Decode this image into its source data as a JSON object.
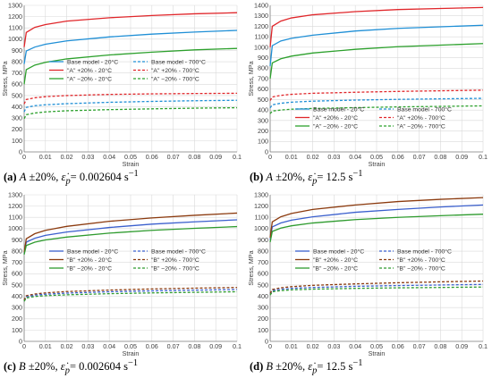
{
  "chart_data": [
    {
      "type": "line",
      "caption": {
        "tag": "(a)",
        "param": "A",
        "pct": "±20%,",
        "rate_label": "ε̇",
        "rate_sub": "p",
        "rate_value": "= 0.002604 s",
        "rate_exp": "−1"
      },
      "xlabel": "Strain",
      "ylabel": "Stress, MPa",
      "xlim": [
        0,
        0.1
      ],
      "ylim": [
        0,
        1300
      ],
      "xticks": [
        "0",
        "0.01",
        "0.02",
        "0.03",
        "0.04",
        "0.05",
        "0.06",
        "0.07",
        "0.08",
        "0.09",
        "0.1"
      ],
      "yticks": [
        "0",
        "100",
        "200",
        "300",
        "400",
        "500",
        "600",
        "700",
        "800",
        "900",
        "1000",
        "1100",
        "1200",
        "1300"
      ],
      "grid": true,
      "legend_position": "center",
      "series": [
        {
          "name": "Base model - 20°C",
          "color": "#1f8fd6",
          "dash": "solid",
          "x": [
            0,
            0.001,
            0.005,
            0.01,
            0.02,
            0.04,
            0.06,
            0.08,
            0.1
          ],
          "y": [
            780,
            895,
            930,
            955,
            985,
            1020,
            1045,
            1063,
            1078
          ]
        },
        {
          "name": "Base model - 700°C",
          "color": "#1f8fd6",
          "dash": "dash",
          "x": [
            0,
            0.001,
            0.005,
            0.01,
            0.02,
            0.04,
            0.06,
            0.08,
            0.1
          ],
          "y": [
            355,
            395,
            410,
            418,
            428,
            440,
            448,
            454,
            458
          ]
        },
        {
          "name": "\"A\" +20% - 20°C",
          "color": "#e0262a",
          "dash": "solid",
          "x": [
            0,
            0.001,
            0.005,
            0.01,
            0.02,
            0.04,
            0.06,
            0.08,
            0.1
          ],
          "y": [
            930,
            1060,
            1105,
            1130,
            1160,
            1190,
            1210,
            1225,
            1235
          ]
        },
        {
          "name": "\"A\" +20% - 700°C",
          "color": "#e0262a",
          "dash": "dash",
          "x": [
            0,
            0.001,
            0.005,
            0.01,
            0.02,
            0.04,
            0.06,
            0.08,
            0.1
          ],
          "y": [
            425,
            465,
            480,
            490,
            500,
            510,
            515,
            518,
            520
          ]
        },
        {
          "name": "\"A\" −20% - 20°C",
          "color": "#2ca02c",
          "dash": "solid",
          "x": [
            0,
            0.001,
            0.005,
            0.01,
            0.02,
            0.04,
            0.06,
            0.08,
            0.1
          ],
          "y": [
            600,
            730,
            770,
            795,
            825,
            860,
            885,
            905,
            918
          ]
        },
        {
          "name": "\"A\" −20% - 700°C",
          "color": "#2ca02c",
          "dash": "dash",
          "x": [
            0,
            0.001,
            0.005,
            0.01,
            0.02,
            0.04,
            0.06,
            0.08,
            0.1
          ],
          "y": [
            295,
            330,
            345,
            355,
            365,
            375,
            382,
            388,
            392
          ]
        }
      ]
    },
    {
      "type": "line",
      "caption": {
        "tag": "(b)",
        "param": "A",
        "pct": "±20%,",
        "rate_label": "ε̇",
        "rate_sub": "p",
        "rate_value": "= 12.5 s",
        "rate_exp": "−1"
      },
      "xlabel": "Strain",
      "ylabel": "Stress, MPa",
      "xlim": [
        0,
        0.1
      ],
      "ylim": [
        0,
        1400
      ],
      "xticks": [
        "0",
        "0.01",
        "0.02",
        "0.03",
        "0.04",
        "0.05",
        "0.06",
        "0.07",
        "0.08",
        "0.09",
        "0.1"
      ],
      "yticks": [
        "0",
        "100",
        "200",
        "300",
        "400",
        "500",
        "600",
        "700",
        "800",
        "900",
        "1000",
        "1100",
        "1200",
        "1300",
        "1400"
      ],
      "grid": true,
      "legend_position": "center",
      "series": [
        {
          "name": "Base model - 20°C",
          "color": "#1f8fd6",
          "dash": "solid",
          "x": [
            0,
            0.001,
            0.005,
            0.01,
            0.02,
            0.04,
            0.06,
            0.08,
            0.1
          ],
          "y": [
            820,
            1015,
            1060,
            1085,
            1115,
            1155,
            1180,
            1195,
            1210
          ]
        },
        {
          "name": "Base model - 700°C",
          "color": "#1f8fd6",
          "dash": "dash",
          "x": [
            0,
            0.001,
            0.005,
            0.01,
            0.02,
            0.04,
            0.06,
            0.08,
            0.1
          ],
          "y": [
            420,
            450,
            465,
            475,
            485,
            495,
            502,
            507,
            512
          ]
        },
        {
          "name": "\"A\" +20% - 20°C",
          "color": "#e0262a",
          "dash": "solid",
          "x": [
            0,
            0.001,
            0.005,
            0.01,
            0.02,
            0.04,
            0.06,
            0.08,
            0.1
          ],
          "y": [
            1000,
            1200,
            1250,
            1280,
            1310,
            1340,
            1360,
            1370,
            1380
          ]
        },
        {
          "name": "\"A\" +20% - 700°C",
          "color": "#e0262a",
          "dash": "dash",
          "x": [
            0,
            0.001,
            0.005,
            0.01,
            0.02,
            0.04,
            0.06,
            0.08,
            0.1
          ],
          "y": [
            490,
            525,
            540,
            550,
            560,
            570,
            578,
            584,
            590
          ]
        },
        {
          "name": "\"A\" −20% - 20°C",
          "color": "#2ca02c",
          "dash": "solid",
          "x": [
            0,
            0.001,
            0.005,
            0.01,
            0.02,
            0.04,
            0.06,
            0.08,
            0.1
          ],
          "y": [
            700,
            850,
            890,
            915,
            945,
            980,
            1005,
            1020,
            1035
          ]
        },
        {
          "name": "\"A\" −20% - 700°C",
          "color": "#2ca02c",
          "dash": "dash",
          "x": [
            0,
            0.001,
            0.005,
            0.01,
            0.02,
            0.04,
            0.06,
            0.08,
            0.1
          ],
          "y": [
            365,
            390,
            400,
            408,
            415,
            423,
            430,
            435,
            440
          ]
        }
      ]
    },
    {
      "type": "line",
      "caption": {
        "tag": "(c)",
        "param": "B",
        "pct": "±20%,",
        "rate_label": "ε̇",
        "rate_sub": "p",
        "rate_value": "= 0.002604 s",
        "rate_exp": "−1"
      },
      "xlabel": "Strain",
      "ylabel": "Stress, MPa",
      "xlim": [
        0,
        0.1
      ],
      "ylim": [
        0,
        1300
      ],
      "xticks": [
        "0",
        "0.01",
        "0.02",
        "0.03",
        "0.04",
        "0.05",
        "0.06",
        "0.07",
        "0.08",
        "0.09",
        "0.1"
      ],
      "yticks": [
        "0",
        "100",
        "200",
        "300",
        "400",
        "500",
        "600",
        "700",
        "800",
        "900",
        "1000",
        "1100",
        "1200",
        "1300"
      ],
      "grid": true,
      "legend_position": "center",
      "series": [
        {
          "name": "Base model - 20°C",
          "color": "#3a5fcd",
          "dash": "solid",
          "x": [
            0,
            0.001,
            0.005,
            0.01,
            0.02,
            0.04,
            0.06,
            0.08,
            0.1
          ],
          "y": [
            780,
            880,
            915,
            940,
            970,
            1010,
            1040,
            1060,
            1078
          ]
        },
        {
          "name": "Base model - 700°C",
          "color": "#3a5fcd",
          "dash": "dash",
          "x": [
            0,
            0.001,
            0.005,
            0.01,
            0.02,
            0.04,
            0.06,
            0.08,
            0.1
          ],
          "y": [
            360,
            395,
            410,
            418,
            428,
            440,
            448,
            454,
            460
          ]
        },
        {
          "name": "\"B\" +20% - 20°C",
          "color": "#8b3a0e",
          "dash": "solid",
          "x": [
            0,
            0.001,
            0.005,
            0.01,
            0.02,
            0.04,
            0.06,
            0.08,
            0.1
          ],
          "y": [
            790,
            910,
            955,
            985,
            1020,
            1065,
            1095,
            1118,
            1138
          ]
        },
        {
          "name": "\"B\" +20% - 700°C",
          "color": "#8b3a0e",
          "dash": "dash",
          "x": [
            0,
            0.001,
            0.005,
            0.01,
            0.02,
            0.04,
            0.06,
            0.08,
            0.1
          ],
          "y": [
            365,
            405,
            420,
            430,
            442,
            455,
            465,
            472,
            478
          ]
        },
        {
          "name": "\"B\" −20% - 20°C",
          "color": "#2e9b2e",
          "dash": "solid",
          "x": [
            0,
            0.001,
            0.005,
            0.01,
            0.02,
            0.04,
            0.06,
            0.08,
            0.1
          ],
          "y": [
            770,
            850,
            880,
            900,
            925,
            960,
            985,
            1003,
            1018
          ]
        },
        {
          "name": "\"B\" −20% - 700°C",
          "color": "#2e9b2e",
          "dash": "dash",
          "x": [
            0,
            0.001,
            0.005,
            0.01,
            0.02,
            0.04,
            0.06,
            0.08,
            0.1
          ],
          "y": [
            355,
            385,
            398,
            405,
            413,
            423,
            430,
            435,
            440
          ]
        }
      ]
    },
    {
      "type": "line",
      "caption": {
        "tag": "(d)",
        "param": "B",
        "pct": "±20%,",
        "rate_label": "ε̇",
        "rate_sub": "p",
        "rate_value": "= 12.5 s",
        "rate_exp": "−1"
      },
      "xlabel": "Strain",
      "ylabel": "Stress, MPa",
      "xlim": [
        0,
        0.1
      ],
      "ylim": [
        0,
        1300
      ],
      "xticks": [
        "0",
        "0.01",
        "0.02",
        "0.03",
        "0.04",
        "0.05",
        "0.06",
        "0.07",
        "0.08",
        "0.09",
        "0.1"
      ],
      "yticks": [
        "0",
        "100",
        "200",
        "300",
        "400",
        "500",
        "600",
        "700",
        "800",
        "900",
        "1000",
        "1100",
        "1200",
        "1300"
      ],
      "grid": true,
      "legend_position": "center",
      "series": [
        {
          "name": "Base model - 20°C",
          "color": "#3a5fcd",
          "dash": "solid",
          "x": [
            0,
            0.001,
            0.005,
            0.01,
            0.02,
            0.04,
            0.06,
            0.08,
            0.1
          ],
          "y": [
            900,
            1015,
            1050,
            1075,
            1105,
            1145,
            1170,
            1192,
            1210
          ]
        },
        {
          "name": "Base model - 700°C",
          "color": "#3a5fcd",
          "dash": "dash",
          "x": [
            0,
            0.001,
            0.005,
            0.01,
            0.02,
            0.04,
            0.06,
            0.08,
            0.1
          ],
          "y": [
            420,
            450,
            462,
            470,
            478,
            488,
            495,
            500,
            505
          ]
        },
        {
          "name": "\"B\" +20% - 20°C",
          "color": "#8b3a0e",
          "dash": "solid",
          "x": [
            0,
            0.001,
            0.005,
            0.01,
            0.02,
            0.04,
            0.06,
            0.08,
            0.1
          ],
          "y": [
            920,
            1060,
            1105,
            1135,
            1170,
            1210,
            1240,
            1260,
            1275
          ]
        },
        {
          "name": "\"B\" +20% - 700°C",
          "color": "#8b3a0e",
          "dash": "dash",
          "x": [
            0,
            0.001,
            0.005,
            0.01,
            0.02,
            0.04,
            0.06,
            0.08,
            0.1
          ],
          "y": [
            425,
            460,
            475,
            485,
            497,
            510,
            520,
            528,
            535
          ]
        },
        {
          "name": "\"B\" −20% - 20°C",
          "color": "#2e9b2e",
          "dash": "solid",
          "x": [
            0,
            0.001,
            0.005,
            0.01,
            0.02,
            0.04,
            0.06,
            0.08,
            0.1
          ],
          "y": [
            880,
            975,
            1005,
            1025,
            1050,
            1080,
            1100,
            1115,
            1128
          ]
        },
        {
          "name": "\"B\" −20% - 700°C",
          "color": "#2e9b2e",
          "dash": "dash",
          "x": [
            0,
            0.001,
            0.005,
            0.01,
            0.02,
            0.04,
            0.06,
            0.08,
            0.1
          ],
          "y": [
            410,
            440,
            450,
            457,
            463,
            470,
            475,
            478,
            482
          ]
        }
      ]
    }
  ]
}
